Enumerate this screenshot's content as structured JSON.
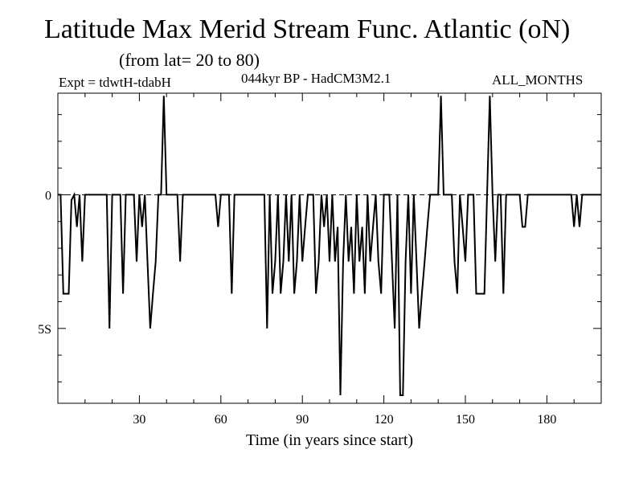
{
  "header": {
    "title": "Latitude Max Merid Stream Func. Atlantic (oN)",
    "subtitle": "(from lat= 20 to 80)",
    "expt": "Expt = tdwtH-tdabH",
    "model": "044kyr BP - HadCM3M2.1",
    "months": "ALL_MONTHS"
  },
  "chart_data": {
    "type": "line",
    "title": "Latitude Max Merid Stream Func. Atlantic (oN)",
    "subtitle": "(from lat= 20 to 80)",
    "xlabel": "Time (in years since start)",
    "ylabel": "",
    "xlim": [
      0,
      200
    ],
    "ylim": [
      -7.8,
      3.8
    ],
    "x_ticks": [
      30,
      60,
      90,
      120,
      150,
      180
    ],
    "x_tick_labels": [
      "30",
      "60",
      "90",
      "120",
      "150",
      "180"
    ],
    "y_ticks": [
      0,
      -5
    ],
    "y_tick_labels": [
      "0",
      "5S"
    ],
    "grid": false,
    "series": [
      {
        "name": "Max Merid Stream Func. Atlantic",
        "points": [
          [
            0,
            0
          ],
          [
            1,
            0
          ],
          [
            2,
            -3.7
          ],
          [
            3,
            -3.7
          ],
          [
            4,
            -3.7
          ],
          [
            5,
            -0.2
          ],
          [
            6,
            0
          ],
          [
            7,
            -1.2
          ],
          [
            8,
            0
          ],
          [
            9,
            -2.5
          ],
          [
            10,
            0
          ],
          [
            18,
            0
          ],
          [
            19,
            -5
          ],
          [
            20,
            0
          ],
          [
            23,
            0
          ],
          [
            24,
            -3.7
          ],
          [
            25,
            0
          ],
          [
            28,
            0
          ],
          [
            29,
            -2.5
          ],
          [
            30,
            0
          ],
          [
            31,
            -1.2
          ],
          [
            32,
            0
          ],
          [
            33,
            -2.5
          ],
          [
            34,
            -5
          ],
          [
            35,
            -3.7
          ],
          [
            36,
            -2.5
          ],
          [
            37,
            0
          ],
          [
            38,
            0
          ],
          [
            39,
            3.7
          ],
          [
            40,
            0
          ],
          [
            44,
            0
          ],
          [
            45,
            -2.5
          ],
          [
            46,
            0
          ],
          [
            58,
            0
          ],
          [
            59,
            -1.2
          ],
          [
            60,
            0
          ],
          [
            63,
            0
          ],
          [
            64,
            -3.7
          ],
          [
            65,
            0
          ],
          [
            76,
            0
          ],
          [
            77,
            -5
          ],
          [
            78,
            0
          ],
          [
            79,
            -3.7
          ],
          [
            80,
            -2.5
          ],
          [
            81,
            0
          ],
          [
            82,
            -3.7
          ],
          [
            83,
            -2.5
          ],
          [
            84,
            0
          ],
          [
            85,
            -2.5
          ],
          [
            86,
            0
          ],
          [
            87,
            -3.7
          ],
          [
            88,
            -2.5
          ],
          [
            89,
            0
          ],
          [
            90,
            -2.5
          ],
          [
            91,
            -1.2
          ],
          [
            92,
            0
          ],
          [
            94,
            0
          ],
          [
            95,
            -3.7
          ],
          [
            96,
            -2.5
          ],
          [
            97,
            0
          ],
          [
            98,
            -1.2
          ],
          [
            99,
            0
          ],
          [
            100,
            -2.5
          ],
          [
            101,
            0
          ],
          [
            102,
            -2.5
          ],
          [
            103,
            -1.2
          ],
          [
            104,
            -7.5
          ],
          [
            105,
            -2.5
          ],
          [
            106,
            0
          ],
          [
            107,
            -2.5
          ],
          [
            108,
            -1.2
          ],
          [
            109,
            -3.7
          ],
          [
            110,
            0
          ],
          [
            111,
            -2.5
          ],
          [
            112,
            -1.2
          ],
          [
            113,
            -3.7
          ],
          [
            114,
            0
          ],
          [
            115,
            -2.5
          ],
          [
            116,
            -1.2
          ],
          [
            117,
            0
          ],
          [
            118,
            -2.5
          ],
          [
            119,
            -3.7
          ],
          [
            120,
            0
          ],
          [
            122,
            0
          ],
          [
            123,
            -2.5
          ],
          [
            124,
            -5
          ],
          [
            125,
            0
          ],
          [
            126,
            -7.5
          ],
          [
            127,
            -7.5
          ],
          [
            128,
            -2.5
          ],
          [
            129,
            0
          ],
          [
            130,
            -3.7
          ],
          [
            131,
            0
          ],
          [
            132,
            -2.5
          ],
          [
            133,
            -5
          ],
          [
            134,
            -3.7
          ],
          [
            135,
            -2.5
          ],
          [
            136,
            -1.2
          ],
          [
            137,
            0
          ],
          [
            140,
            0
          ],
          [
            141,
            3.7
          ],
          [
            142,
            0
          ],
          [
            145,
            0
          ],
          [
            146,
            -2.5
          ],
          [
            147,
            -3.7
          ],
          [
            148,
            0
          ],
          [
            149,
            -1.2
          ],
          [
            150,
            -2.5
          ],
          [
            151,
            0
          ],
          [
            153,
            0
          ],
          [
            154,
            -3.7
          ],
          [
            155,
            -3.7
          ],
          [
            156,
            -3.7
          ],
          [
            157,
            -3.7
          ],
          [
            158,
            0
          ],
          [
            159,
            3.7
          ],
          [
            160,
            0
          ],
          [
            161,
            -2.5
          ],
          [
            162,
            0
          ],
          [
            163,
            0
          ],
          [
            164,
            -3.7
          ],
          [
            165,
            0
          ],
          [
            170,
            0
          ],
          [
            171,
            -1.2
          ],
          [
            172,
            -1.2
          ],
          [
            173,
            0
          ],
          [
            189,
            0
          ],
          [
            190,
            -1.2
          ],
          [
            191,
            0
          ],
          [
            192,
            -1.2
          ],
          [
            193,
            0
          ],
          [
            200,
            0
          ]
        ]
      }
    ]
  }
}
